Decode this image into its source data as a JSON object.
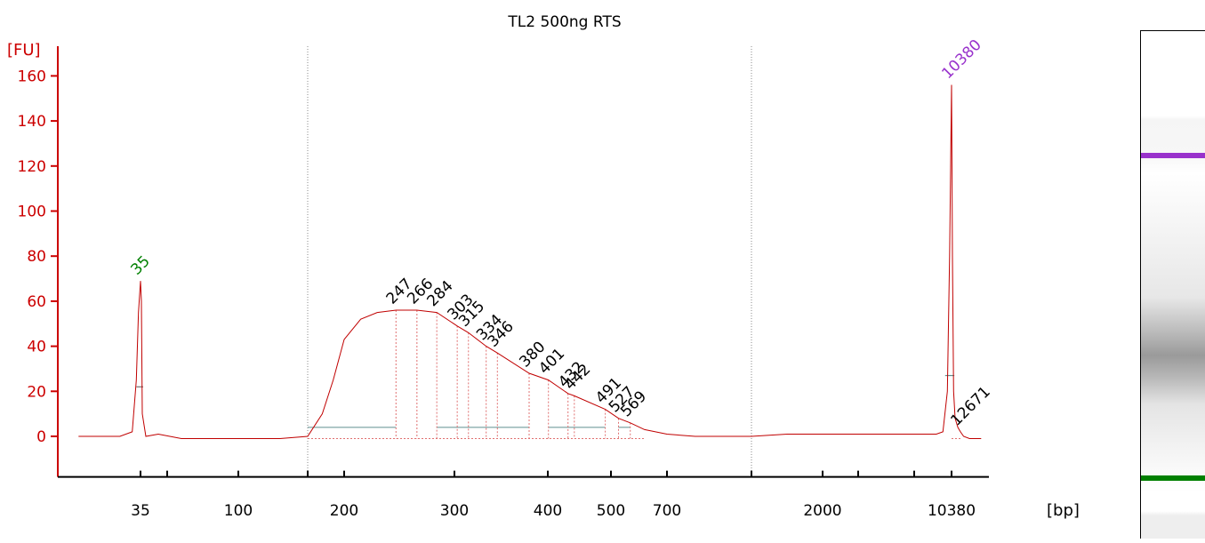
{
  "chart_data": {
    "type": "line",
    "title": "TL2 500ng RTS",
    "ylabel": "[FU]",
    "xlabel": "[bp]",
    "ylim": [
      -18,
      168
    ],
    "y_ticks": [
      0,
      20,
      40,
      60,
      80,
      100,
      120,
      140,
      160
    ],
    "x_tick_labels": [
      "35",
      "100",
      "200",
      "300",
      "400",
      "500",
      "700",
      "2000",
      "10380"
    ],
    "x_marker_positions": [
      35,
      50,
      100,
      150,
      200,
      300,
      400,
      500,
      700,
      1000,
      2000,
      3000,
      7000,
      10380
    ],
    "region_boundaries": [
      150,
      1000
    ],
    "series": [
      {
        "x": [
          20,
          30,
          33,
          34,
          34.5,
          35,
          35.5,
          36,
          38,
          45,
          60,
          100,
          130,
          150,
          170,
          185,
          200,
          215,
          230,
          247,
          266,
          284,
          303,
          315,
          334,
          346,
          380,
          401,
          432,
          442,
          491,
          527,
          569,
          620,
          700,
          800,
          1000,
          1500,
          2000,
          3000,
          5000,
          7000,
          9000,
          9600,
          10000,
          10200,
          10380,
          10600,
          10900,
          11300,
          12000,
          12671,
          13500,
          15000,
          18000
        ],
        "values": [
          0,
          0,
          2,
          25,
          55,
          69,
          60,
          10,
          0,
          1,
          -1,
          -1,
          -1,
          0,
          10,
          25,
          43,
          52,
          55,
          56,
          56,
          55,
          49,
          46,
          40,
          37,
          28,
          25,
          19,
          18,
          12,
          8,
          6,
          3,
          1,
          0,
          0,
          1,
          1,
          1,
          1,
          1,
          1,
          2,
          20,
          80,
          156,
          80,
          20,
          8,
          4,
          2,
          0,
          -1,
          -1
        ]
      }
    ],
    "peaks": [
      {
        "label": "35",
        "x": 35,
        "height": 69,
        "color": "#008000"
      },
      {
        "label": "247",
        "x": 247,
        "height": 56
      },
      {
        "label": "266",
        "x": 266,
        "height": 56
      },
      {
        "label": "284",
        "x": 284,
        "height": 55
      },
      {
        "label": "303",
        "x": 303,
        "height": 49
      },
      {
        "label": "315",
        "x": 315,
        "height": 46
      },
      {
        "label": "334",
        "x": 334,
        "height": 40
      },
      {
        "label": "346",
        "x": 346,
        "height": 37
      },
      {
        "label": "380",
        "x": 380,
        "height": 28
      },
      {
        "label": "401",
        "x": 401,
        "height": 25
      },
      {
        "label": "432",
        "x": 432,
        "height": 19
      },
      {
        "label": "442",
        "x": 442,
        "height": 18
      },
      {
        "label": "491",
        "x": 491,
        "height": 12
      },
      {
        "label": "527",
        "x": 527,
        "height": 8
      },
      {
        "label": "569",
        "x": 569,
        "height": 6
      },
      {
        "label": "10380",
        "x": 10380,
        "height": 156,
        "color": "#9932cc"
      },
      {
        "label": "12671",
        "x": 12671,
        "height": 2
      }
    ],
    "legend": "none",
    "colors": {
      "trace": "#c00000",
      "axis": "#cc0000",
      "baseline": "#5f8f8f",
      "lower_marker": "#008000",
      "upper_marker": "#9932cc"
    }
  },
  "gel_image": {
    "bands": [
      {
        "role": "upper-marker",
        "color": "#9932cc"
      },
      {
        "role": "lower-marker",
        "color": "#008000"
      }
    ]
  }
}
